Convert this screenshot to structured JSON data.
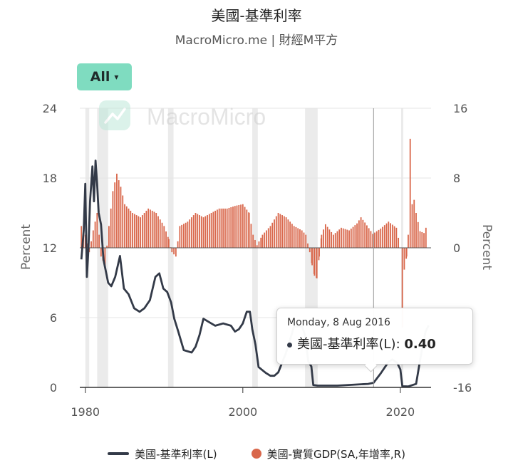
{
  "header": {
    "title": "美國-基準利率",
    "subtitle": "MacroMicro.me | 財經M平方"
  },
  "range_selector": {
    "label": "All",
    "caret": "▾"
  },
  "watermark": "MacroMicro",
  "tooltip": {
    "date": "Monday, 8 Aug 2016",
    "series": "美國-基準利率(L)",
    "value": "0.40"
  },
  "chart_data": {
    "type": "line",
    "title": "美國-基準利率",
    "xlim": [
      1979.3,
      2023.9
    ],
    "x_ticks": [
      1980,
      2000,
      2020
    ],
    "left_axis": {
      "label": "Percent",
      "ylim": [
        0,
        24
      ],
      "ticks": [
        0,
        6,
        12,
        18,
        24
      ]
    },
    "right_axis": {
      "label": "Percent",
      "ylim": [
        -16,
        16
      ],
      "ticks": [
        -16,
        0,
        8,
        16
      ]
    },
    "recessions": [
      [
        1980.0,
        1980.5
      ],
      [
        1981.5,
        1982.9
      ],
      [
        1990.5,
        1991.2
      ],
      [
        2001.2,
        2001.9
      ],
      [
        2007.9,
        2009.5
      ],
      [
        2020.1,
        2020.35
      ]
    ],
    "crosshair_x": 2016.6,
    "legend_position": "bottom",
    "colors": {
      "rate": "#333a48",
      "gdp": "#d9674b",
      "recession": "#ebebeb"
    },
    "series": [
      {
        "name": "美國-基準利率(L)",
        "axis": "left",
        "x": [
          1979.5,
          1979.8,
          1980.0,
          1980.2,
          1980.4,
          1980.6,
          1980.9,
          1981.1,
          1981.3,
          1981.5,
          1981.7,
          1982.0,
          1982.3,
          1982.6,
          1982.9,
          1983.3,
          1983.8,
          1984.4,
          1984.9,
          1985.5,
          1986.2,
          1986.9,
          1987.5,
          1988.2,
          1988.9,
          1989.4,
          1989.9,
          1990.4,
          1990.9,
          1991.3,
          1991.8,
          1992.5,
          1993.5,
          1994.0,
          1994.5,
          1995.0,
          1995.5,
          1996.5,
          1997.5,
          1998.5,
          1999.0,
          1999.5,
          2000.0,
          2000.5,
          2000.9,
          2001.2,
          2001.6,
          2002.0,
          2002.9,
          2003.5,
          2004.0,
          2004.5,
          2005.5,
          2006.5,
          2007.5,
          2007.9,
          2008.3,
          2008.7,
          2008.95,
          2009.5,
          2012.0,
          2015.9,
          2016.6,
          2017.5,
          2018.5,
          2019.0,
          2019.6,
          2020.0,
          2020.25,
          2021.0,
          2022.0,
          2022.3,
          2022.7,
          2023.2,
          2023.6
        ],
        "values": [
          11.0,
          13.5,
          17.5,
          9.5,
          12.0,
          16.0,
          19.0,
          16.0,
          19.5,
          17.5,
          15.0,
          14.0,
          11.0,
          10.0,
          9.0,
          8.7,
          9.5,
          11.3,
          8.5,
          8.0,
          6.8,
          6.5,
          6.8,
          7.5,
          9.5,
          9.8,
          8.5,
          8.2,
          7.3,
          5.9,
          4.8,
          3.2,
          3.0,
          3.5,
          4.5,
          5.9,
          5.7,
          5.3,
          5.5,
          5.3,
          4.8,
          5.0,
          5.5,
          6.5,
          6.5,
          5.0,
          3.7,
          1.75,
          1.25,
          1.0,
          1.0,
          1.3,
          3.0,
          5.25,
          5.25,
          4.5,
          2.25,
          1.8,
          0.2,
          0.15,
          0.15,
          0.3,
          0.4,
          1.2,
          2.2,
          2.4,
          2.1,
          1.55,
          0.1,
          0.08,
          0.3,
          1.5,
          3.1,
          4.8,
          5.33
        ]
      },
      {
        "name": "美國-實質GDP(SA,年增率,R)",
        "axis": "right",
        "x": [
          1979.5,
          1980.0,
          1980.5,
          1981.0,
          1981.5,
          1982.0,
          1982.5,
          1983.0,
          1983.5,
          1984.0,
          1984.5,
          1985.0,
          1986.0,
          1987.0,
          1988.0,
          1989.0,
          1990.0,
          1990.6,
          1991.0,
          1991.5,
          1992.0,
          1993.0,
          1994.0,
          1995.0,
          1996.0,
          1997.0,
          1998.0,
          1999.0,
          2000.0,
          2000.8,
          2001.3,
          2001.8,
          2002.5,
          2003.5,
          2004.5,
          2005.5,
          2006.5,
          2007.5,
          2008.0,
          2008.5,
          2008.8,
          2009.1,
          2009.4,
          2009.7,
          2010.0,
          2010.5,
          2011.5,
          2012.5,
          2013.5,
          2014.5,
          2015.0,
          2015.5,
          2016.5,
          2017.5,
          2018.5,
          2019.5,
          2020.0,
          2020.25,
          2020.5,
          2020.8,
          2021.0,
          2021.25,
          2021.5,
          2021.75,
          2022.0,
          2022.5,
          2023.0,
          2023.5
        ],
        "values": [
          2.5,
          1.5,
          -0.5,
          2.0,
          4.0,
          -1.0,
          -2.0,
          2.5,
          6.5,
          8.5,
          7.0,
          5.0,
          4.0,
          3.5,
          4.5,
          4.0,
          2.5,
          1.0,
          -0.5,
          -1.0,
          2.5,
          3.0,
          4.0,
          3.5,
          4.0,
          4.5,
          4.5,
          4.8,
          5.0,
          4.0,
          1.5,
          0.3,
          1.5,
          2.5,
          4.0,
          3.5,
          2.5,
          2.0,
          1.5,
          -0.5,
          -2.0,
          -3.2,
          -3.5,
          -1.0,
          1.5,
          2.7,
          1.5,
          2.3,
          2.0,
          2.8,
          3.5,
          2.9,
          1.6,
          2.2,
          3.0,
          2.3,
          0.0,
          -9.1,
          -2.5,
          -1.0,
          1.5,
          12.5,
          5.0,
          5.5,
          4.0,
          1.9,
          1.7,
          2.9
        ]
      }
    ]
  }
}
